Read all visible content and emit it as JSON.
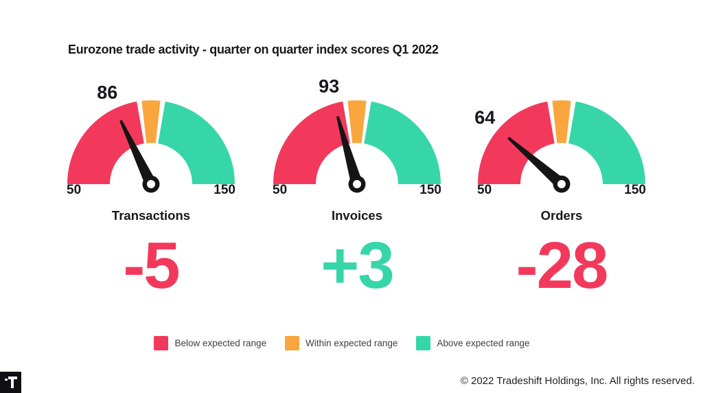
{
  "title": "Eurozone trade activity - quarter on quarter index scores Q1 2022",
  "colors": {
    "below": "#F2395C",
    "within": "#F9A63E",
    "above": "#36D6A9",
    "needle": "#151515",
    "text": "#17171D"
  },
  "chart_data": {
    "type": "gauge",
    "title": "Eurozone trade activity - quarter on quarter index scores Q1 2022",
    "axis": {
      "min": 50,
      "max": 150,
      "start_label": "50",
      "end_label": "150"
    },
    "segments": [
      {
        "label": "Below expected range",
        "color": "#F2395C",
        "from": 50,
        "to": 95
      },
      {
        "label": "Within expected range",
        "color": "#F9A63E",
        "from": 96,
        "to": 104
      },
      {
        "label": "Above expected range",
        "color": "#36D6A9",
        "from": 105,
        "to": 150
      }
    ],
    "gauges": [
      {
        "label": "Transactions",
        "value": 86,
        "needle_deg": 115.5,
        "delta": "-5",
        "delta_color": "#F2395C"
      },
      {
        "label": "Invoices",
        "value": 93,
        "needle_deg": 106,
        "delta": "+3",
        "delta_color": "#36D6A9"
      },
      {
        "label": "Orders",
        "value": 64,
        "needle_deg": 139,
        "delta": "-28",
        "delta_color": "#F2395C"
      }
    ]
  },
  "legend": {
    "items": [
      {
        "label": "Below expected range",
        "color": "#F2395C"
      },
      {
        "label": "Within expected range",
        "color": "#F9A63E"
      },
      {
        "label": "Above expected range",
        "color": "#36D6A9"
      }
    ]
  },
  "footer": {
    "copyright": "© 2022 Tradeshift Holdings, Inc. All rights reserved."
  },
  "logo": {
    "name": "tradeshift-logo"
  }
}
